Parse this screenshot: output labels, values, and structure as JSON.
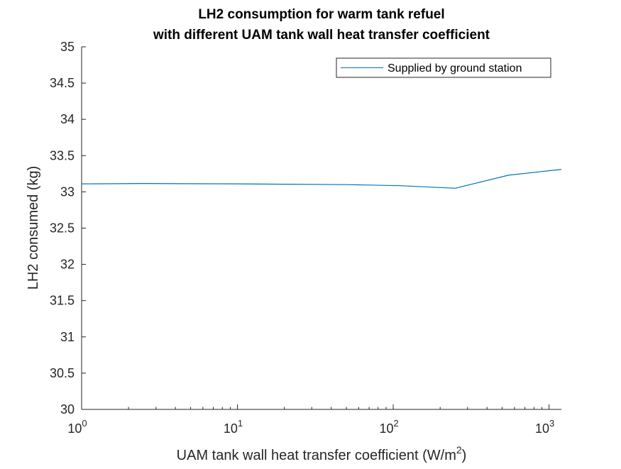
{
  "chart_data": {
    "type": "line",
    "title_lines": [
      "LH2 consumption for warm tank refuel",
      "with different UAM tank wall heat transfer coefficient"
    ],
    "xlabel_main": "UAM tank wall heat transfer coefficient (W/m",
    "xlabel_sup": "2",
    "xlabel_close": ")",
    "ylabel": "LH2 consumed (kg)",
    "xscale": "log",
    "xlim": [
      1,
      1200
    ],
    "ylim": [
      30,
      35
    ],
    "xticks": [
      {
        "base": "10",
        "exp": "0",
        "value": 1
      },
      {
        "base": "10",
        "exp": "1",
        "value": 10
      },
      {
        "base": "10",
        "exp": "2",
        "value": 100
      },
      {
        "base": "10",
        "exp": "3",
        "value": 1000
      }
    ],
    "yticks": [
      {
        "label": "30",
        "value": 30
      },
      {
        "label": "30.5",
        "value": 30.5
      },
      {
        "label": "31",
        "value": 31
      },
      {
        "label": "31.5",
        "value": 31.5
      },
      {
        "label": "32",
        "value": 32
      },
      {
        "label": "32.5",
        "value": 32.5
      },
      {
        "label": "33",
        "value": 33
      },
      {
        "label": "33.5",
        "value": 33.5
      },
      {
        "label": "34",
        "value": 34
      },
      {
        "label": "34.5",
        "value": 34.5
      },
      {
        "label": "35",
        "value": 35
      }
    ],
    "grid": false,
    "legend_position": "top-right",
    "series": [
      {
        "name": "Supplied by ground station",
        "color": "#0072BD",
        "x": [
          1,
          2.5,
          10,
          50,
          110,
          250,
          550,
          1200
        ],
        "y": [
          33.11,
          33.115,
          33.11,
          33.1,
          33.085,
          33.05,
          33.23,
          33.31
        ]
      }
    ]
  }
}
